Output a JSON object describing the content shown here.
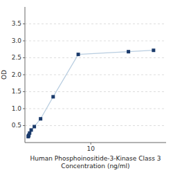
{
  "chart_data": {
    "type": "line",
    "xlabel": "Human Phosphoinositide-3-Kinase Class 3\nConcentration (ng/ml)",
    "ylabel": "OD",
    "x": [
      0.0313,
      0.0625,
      0.125,
      0.25,
      0.5,
      1,
      2,
      4,
      8,
      16,
      20
    ],
    "values": [
      0.175,
      0.195,
      0.22,
      0.28,
      0.37,
      0.47,
      0.7,
      1.35,
      2.6,
      2.68,
      2.72
    ],
    "color": "#b8cde0",
    "colors": [
      "#1a3a6b",
      "#1a3a6b",
      "#1a3a6b",
      "#1a3a6b",
      "#1a3a6b",
      "#1a3a6b",
      "#1a3a6b",
      "#1a3a6b",
      "#1a3a6b",
      "#1a3a6b",
      "#1a3a6b"
    ],
    "marker": "square",
    "line_style": "solid",
    "xlim": [
      -0.5,
      22
    ],
    "xticks": [
      10
    ],
    "ylim": [
      0,
      4.0
    ],
    "yticks": [
      0.5,
      {
        "value": 1.0,
        "label": "1.0"
      },
      1.5,
      {
        "value": 2.0,
        "label": "2.0"
      },
      2.5,
      {
        "value": 3.0,
        "label": "3.0"
      },
      3.5
    ],
    "grid": true
  }
}
